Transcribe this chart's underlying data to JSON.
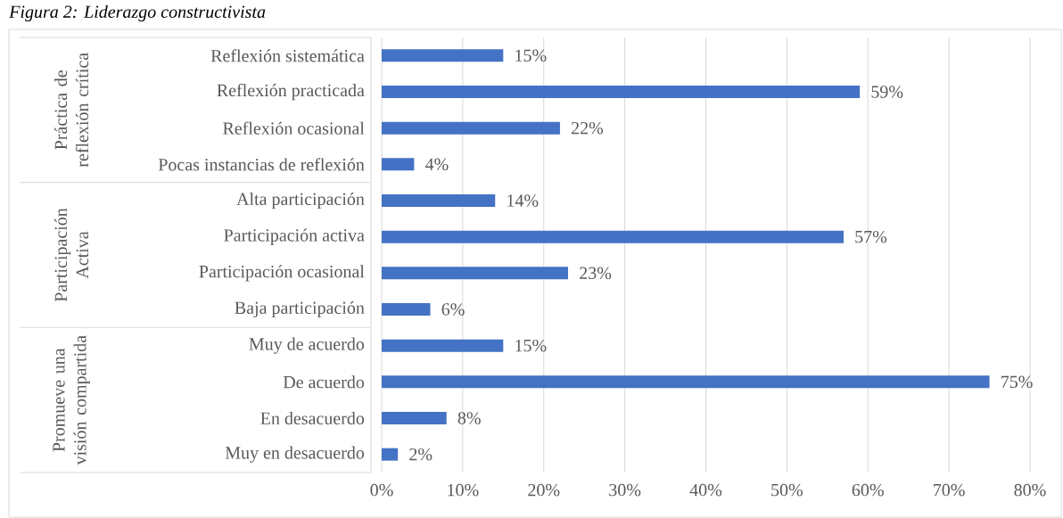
{
  "chart_data": {
    "type": "bar",
    "orientation": "horizontal",
    "title": "Figura 2: Liderazgo constructivista",
    "categories": [
      "Reflexión sistemática",
      "Reflexión practicada",
      "Reflexión ocasional",
      "Pocas instancias de reflexión",
      "Alta participación",
      "Participación activa",
      "Participación ocasional",
      "Baja participación",
      "Muy de acuerdo",
      "De acuerdo",
      "En desacuerdo",
      "Muy en desacuerdo"
    ],
    "values": [
      15,
      59,
      22,
      4,
      14,
      57,
      23,
      6,
      15,
      75,
      8,
      2
    ],
    "value_labels": [
      "15%",
      "59%",
      "22%",
      "4%",
      "14%",
      "57%",
      "23%",
      "6%",
      "15%",
      "75%",
      "8%",
      "2%"
    ],
    "color": "#4472c4",
    "xlim": [
      0,
      80
    ],
    "xticks": [
      {
        "value": 0,
        "label": "0%"
      },
      {
        "value": 10,
        "label": "10%"
      },
      {
        "value": 20,
        "label": "20%"
      },
      {
        "value": 30,
        "label": "30%"
      },
      {
        "value": 40,
        "label": "40%"
      },
      {
        "value": 50,
        "label": "50%"
      },
      {
        "value": 60,
        "label": "60%"
      },
      {
        "value": 70,
        "label": "70%"
      },
      {
        "value": 80,
        "label": "80%"
      }
    ],
    "grid": "x",
    "annotations": [
      "Práctica de reflexión crítica",
      "Participación Activa",
      "Promueve una visión compartida"
    ]
  }
}
